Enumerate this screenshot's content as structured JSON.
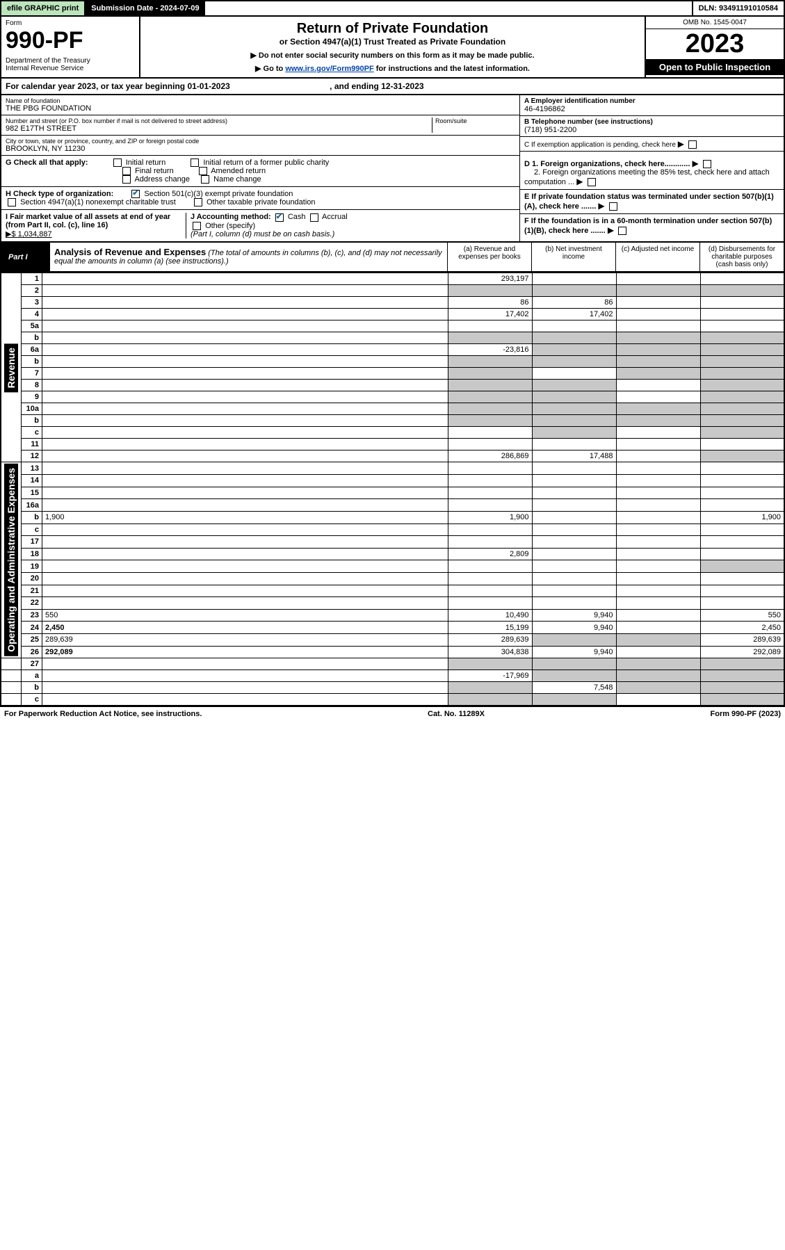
{
  "topbar": {
    "efile": "efile GRAPHIC print",
    "submission": "Submission Date - 2024-07-09",
    "dln": "DLN: 93491191010584"
  },
  "header": {
    "form_label": "Form",
    "form_number": "990-PF",
    "dept": "Department of the Treasury\nInternal Revenue Service",
    "title": "Return of Private Foundation",
    "subtitle": "or Section 4947(a)(1) Trust Treated as Private Foundation",
    "note1": "▶ Do not enter social security numbers on this form as it may be made public.",
    "note2_pre": "▶ Go to ",
    "note2_link": "www.irs.gov/Form990PF",
    "note2_post": " for instructions and the latest information.",
    "omb": "OMB No. 1545-0047",
    "year": "2023",
    "open": "Open to Public Inspection"
  },
  "calyear": {
    "text": "For calendar year 2023, or tax year beginning 01-01-2023",
    "ending": ", and ending 12-31-2023"
  },
  "info": {
    "name_lbl": "Name of foundation",
    "name": "THE PBG FOUNDATION",
    "addr_lbl": "Number and street (or P.O. box number if mail is not delivered to street address)",
    "addr": "982 E17TH STREET",
    "room_lbl": "Room/suite",
    "city_lbl": "City or town, state or province, country, and ZIP or foreign postal code",
    "city": "BROOKLYN, NY  11230",
    "a_lbl": "A Employer identification number",
    "a_val": "46-4196862",
    "b_lbl": "B Telephone number (see instructions)",
    "b_val": "(718) 951-2200",
    "c_lbl": "C If exemption application is pending, check here",
    "d1": "D 1. Foreign organizations, check here............",
    "d2": "2. Foreign organizations meeting the 85% test, check here and attach computation ...",
    "e": "E  If private foundation status was terminated under section 507(b)(1)(A), check here .......",
    "f": "F  If the foundation is in a 60-month termination under section 507(b)(1)(B), check here .......",
    "g_lbl": "G Check all that apply:",
    "g_opts": [
      "Initial return",
      "Initial return of a former public charity",
      "Final return",
      "Amended return",
      "Address change",
      "Name change"
    ],
    "h_lbl": "H Check type of organization:",
    "h_opt1": "Section 501(c)(3) exempt private foundation",
    "h_opt2": "Section 4947(a)(1) nonexempt charitable trust",
    "h_opt3": "Other taxable private foundation",
    "i_lbl": "I Fair market value of all assets at end of year (from Part II, col. (c), line 16)",
    "i_val": "▶$  1,034,887",
    "j_lbl": "J Accounting method:",
    "j_cash": "Cash",
    "j_accrual": "Accrual",
    "j_other": "Other (specify)",
    "j_note": "(Part I, column (d) must be on cash basis.)"
  },
  "part1": {
    "label": "Part I",
    "title": "Analysis of Revenue and Expenses",
    "title_note": "(The total of amounts in columns (b), (c), and (d) may not necessarily equal the amounts in column (a) (see instructions).)",
    "col_a": "(a)   Revenue and expenses per books",
    "col_b": "(b)   Net investment income",
    "col_c": "(c)   Adjusted net income",
    "col_d": "(d)   Disbursements for charitable purposes (cash basis only)"
  },
  "side_rev": "Revenue",
  "side_exp": "Operating and Administrative Expenses",
  "rows": [
    {
      "n": "1",
      "d": "",
      "a": "293,197",
      "b": "",
      "c": ""
    },
    {
      "n": "2",
      "d": "",
      "a": "",
      "b": "",
      "c": "",
      "shade_bcd": true,
      "shade_a": true
    },
    {
      "n": "3",
      "d": "",
      "a": "86",
      "b": "86",
      "c": ""
    },
    {
      "n": "4",
      "d": "",
      "a": "17,402",
      "b": "17,402",
      "c": ""
    },
    {
      "n": "5a",
      "d": "",
      "a": "",
      "b": "",
      "c": ""
    },
    {
      "n": "b",
      "d": "",
      "a": "",
      "b": "",
      "c": "",
      "shade_all": true
    },
    {
      "n": "6a",
      "d": "",
      "a": "-23,816",
      "b": "",
      "c": "",
      "shade_bcd": true
    },
    {
      "n": "b",
      "d": "",
      "a": "",
      "b": "",
      "c": "",
      "shade_all": true
    },
    {
      "n": "7",
      "d": "",
      "a": "",
      "b": "",
      "c": "",
      "shade_acd": true
    },
    {
      "n": "8",
      "d": "",
      "a": "",
      "b": "",
      "c": "",
      "shade_ab": true,
      "shade_d": true
    },
    {
      "n": "9",
      "d": "",
      "a": "",
      "b": "",
      "c": "",
      "shade_ab": true,
      "shade_d": true
    },
    {
      "n": "10a",
      "d": "",
      "a": "",
      "b": "",
      "c": "",
      "shade_all": true
    },
    {
      "n": "b",
      "d": "",
      "a": "",
      "b": "",
      "c": "",
      "shade_all": true
    },
    {
      "n": "c",
      "d": "",
      "a": "",
      "b": "",
      "c": "",
      "shade_b": true,
      "shade_d": true
    },
    {
      "n": "11",
      "d": "",
      "a": "",
      "b": "",
      "c": ""
    },
    {
      "n": "12",
      "d": "",
      "a": "286,869",
      "b": "17,488",
      "c": "",
      "bold": true,
      "shade_d": true
    }
  ],
  "exp_rows": [
    {
      "n": "13",
      "d": "",
      "a": "",
      "b": "",
      "c": ""
    },
    {
      "n": "14",
      "d": "",
      "a": "",
      "b": "",
      "c": ""
    },
    {
      "n": "15",
      "d": "",
      "a": "",
      "b": "",
      "c": ""
    },
    {
      "n": "16a",
      "d": "",
      "a": "",
      "b": "",
      "c": ""
    },
    {
      "n": "b",
      "d": "1,900",
      "a": "1,900",
      "b": "",
      "c": ""
    },
    {
      "n": "c",
      "d": "",
      "a": "",
      "b": "",
      "c": ""
    },
    {
      "n": "17",
      "d": "",
      "a": "",
      "b": "",
      "c": ""
    },
    {
      "n": "18",
      "d": "",
      "a": "2,809",
      "b": "",
      "c": ""
    },
    {
      "n": "19",
      "d": "",
      "a": "",
      "b": "",
      "c": "",
      "shade_d": true
    },
    {
      "n": "20",
      "d": "",
      "a": "",
      "b": "",
      "c": ""
    },
    {
      "n": "21",
      "d": "",
      "a": "",
      "b": "",
      "c": ""
    },
    {
      "n": "22",
      "d": "",
      "a": "",
      "b": "",
      "c": ""
    },
    {
      "n": "23",
      "d": "550",
      "a": "10,490",
      "b": "9,940",
      "c": ""
    },
    {
      "n": "24",
      "d": "2,450",
      "a": "15,199",
      "b": "9,940",
      "c": "",
      "bold": true
    },
    {
      "n": "25",
      "d": "289,639",
      "a": "289,639",
      "b": "",
      "c": "",
      "shade_bc": true
    },
    {
      "n": "26",
      "d": "292,089",
      "a": "304,838",
      "b": "9,940",
      "c": "",
      "bold": true
    }
  ],
  "final_rows": [
    {
      "n": "27",
      "d": "",
      "a": "",
      "b": "",
      "c": "",
      "shade_all": true
    },
    {
      "n": "a",
      "d": "",
      "a": "-17,969",
      "b": "",
      "c": "",
      "bold": true,
      "shade_bcd": true
    },
    {
      "n": "b",
      "d": "",
      "a": "",
      "b": "7,548",
      "c": "",
      "bold": true,
      "shade_a": true,
      "shade_cd": true
    },
    {
      "n": "c",
      "d": "",
      "a": "",
      "b": "",
      "c": "",
      "bold": true,
      "shade_ab": true,
      "shade_d": true
    }
  ],
  "footer": {
    "left": "For Paperwork Reduction Act Notice, see instructions.",
    "center": "Cat. No. 11289X",
    "right": "Form 990-PF (2023)"
  }
}
